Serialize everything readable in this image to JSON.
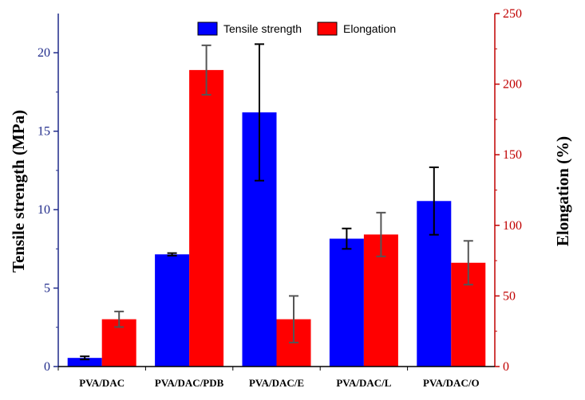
{
  "chart_data": {
    "type": "bar",
    "categories": [
      "PVA/DAC",
      "PVA/DAC/PDB",
      "PVA/DAC/E",
      "PVA/DAC/L",
      "PVA/DAC/O"
    ],
    "series": [
      {
        "name": "Tensile strength",
        "axis": "left",
        "color": "#0000ff",
        "values": [
          0.55,
          7.15,
          16.2,
          8.15,
          10.55
        ],
        "errors": [
          0.1,
          0.08,
          4.35,
          0.65,
          2.15
        ]
      },
      {
        "name": "Elongation",
        "axis": "right",
        "color": "#ff0000",
        "values": [
          33.5,
          210,
          33.5,
          93.5,
          73.5
        ],
        "errors": [
          5.5,
          17.5,
          16.5,
          15.5,
          15.5
        ]
      }
    ],
    "y_left": {
      "label": "Tensile strength (MPa)",
      "ylim": [
        0,
        22.5
      ],
      "ticks": [
        "0",
        "5",
        "10",
        "15",
        "20"
      ],
      "color": "#1f2a8a"
    },
    "y_right": {
      "label": "Elongation (%)",
      "ylim": [
        0,
        250
      ],
      "ticks": [
        "0",
        "50",
        "100",
        "150",
        "200",
        "250"
      ],
      "color": "#c00000"
    },
    "legend": {
      "position": "top-center",
      "entries": [
        "Tensile strength",
        "Elongation"
      ]
    },
    "grid": false
  }
}
